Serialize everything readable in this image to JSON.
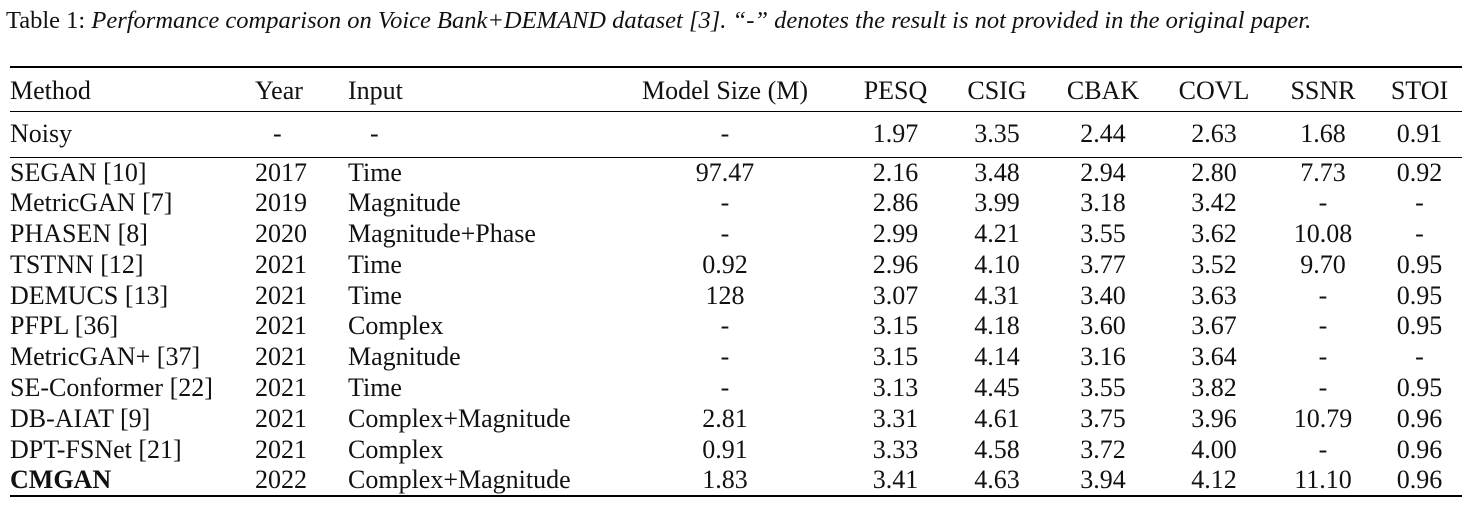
{
  "caption": {
    "label": "Table 1:",
    "text": "Performance comparison on Voice Bank+DEMAND dataset [3]. “-” denotes the result is not provided in the original paper."
  },
  "table": {
    "headers": [
      "Method",
      "Year",
      "Input",
      "Model Size (M)",
      "PESQ",
      "CSIG",
      "CBAK",
      "COVL",
      "SSNR",
      "STOI"
    ],
    "baseline": [
      "Noisy",
      "-",
      "-",
      "-",
      "1.97",
      "3.35",
      "2.44",
      "2.63",
      "1.68",
      "0.91"
    ],
    "rows": [
      [
        "SEGAN [10]",
        "2017",
        "Time",
        "97.47",
        "2.16",
        "3.48",
        "2.94",
        "2.80",
        "7.73",
        "0.92"
      ],
      [
        "MetricGAN [7]",
        "2019",
        "Magnitude",
        "-",
        "2.86",
        "3.99",
        "3.18",
        "3.42",
        "-",
        "-"
      ],
      [
        "PHASEN [8]",
        "2020",
        "Magnitude+Phase",
        "-",
        "2.99",
        "4.21",
        "3.55",
        "3.62",
        "10.08",
        "-"
      ],
      [
        "TSTNN [12]",
        "2021",
        "Time",
        "0.92",
        "2.96",
        "4.10",
        "3.77",
        "3.52",
        "9.70",
        "0.95"
      ],
      [
        "DEMUCS [13]",
        "2021",
        "Time",
        "128",
        "3.07",
        "4.31",
        "3.40",
        "3.63",
        "-",
        "0.95"
      ],
      [
        "PFPL [36]",
        "2021",
        "Complex",
        "-",
        "3.15",
        "4.18",
        "3.60",
        "3.67",
        "-",
        "0.95"
      ],
      [
        "MetricGAN+ [37]",
        "2021",
        "Magnitude",
        "-",
        "3.15",
        "4.14",
        "3.16",
        "3.64",
        "-",
        "-"
      ],
      [
        "SE-Conformer [22]",
        "2021",
        "Time",
        "-",
        "3.13",
        "4.45",
        "3.55",
        "3.82",
        "-",
        "0.95"
      ],
      [
        "DB-AIAT [9]",
        "2021",
        "Complex+Magnitude",
        "2.81",
        "3.31",
        "4.61",
        "3.75",
        "3.96",
        "10.79",
        "0.96"
      ],
      [
        "DPT-FSNet [21]",
        "2021",
        "Complex",
        "0.91",
        "3.33",
        "4.58",
        "3.72",
        "4.00",
        "-",
        "0.96"
      ],
      [
        "CMGAN",
        "2022",
        "Complex+Magnitude",
        "1.83",
        "3.41",
        "4.63",
        "3.94",
        "4.12",
        "11.10",
        "0.96"
      ]
    ]
  }
}
